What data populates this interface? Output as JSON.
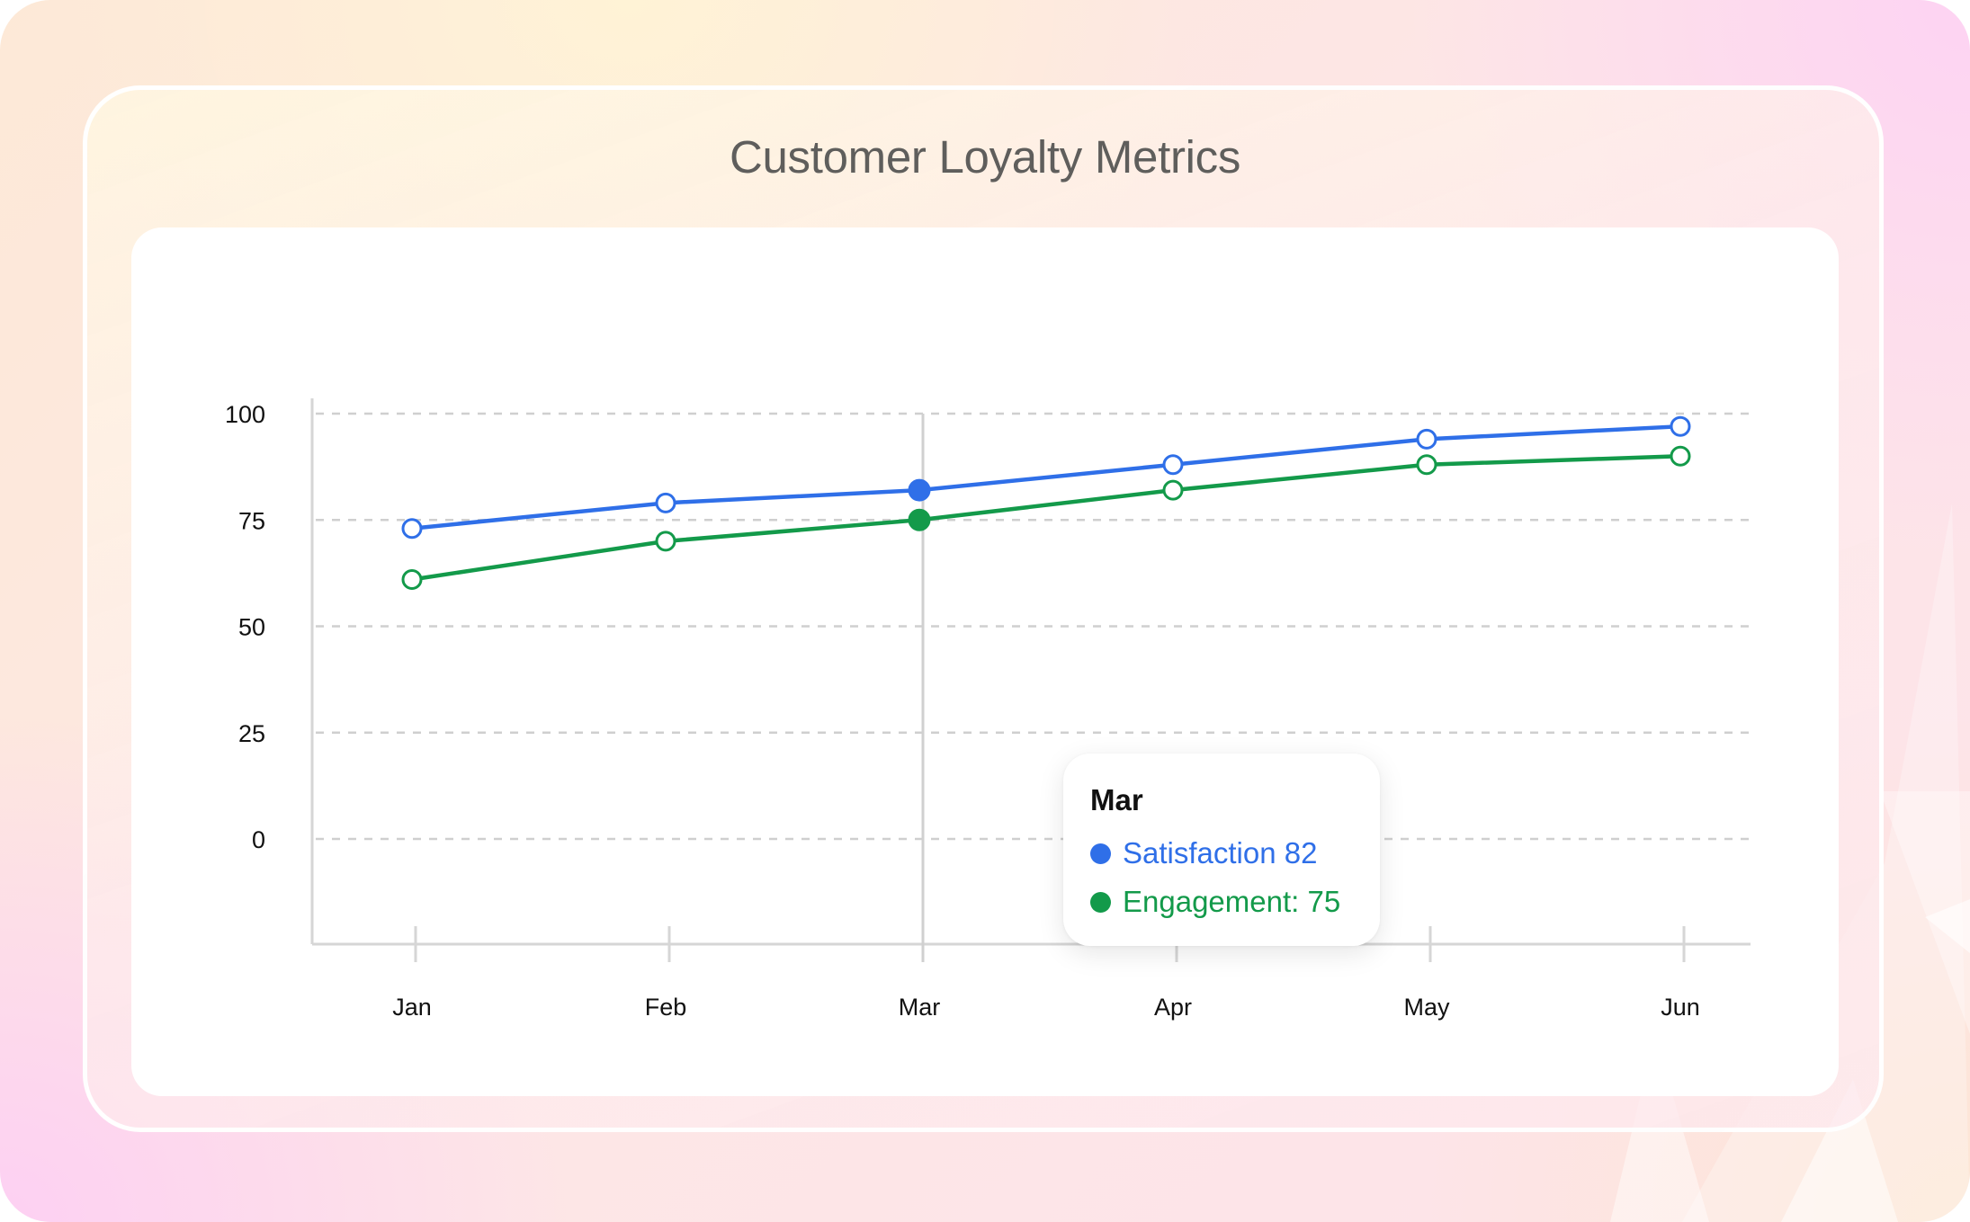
{
  "title": "Customer Loyalty Metrics",
  "colors": {
    "satisfaction": "#2f6fe8",
    "engagement": "#139a4a",
    "grid": "#cfcfcf",
    "axis": "#d6d6d6"
  },
  "tooltip": {
    "month": "Mar",
    "satisfaction_text": "Satisfaction 82",
    "engagement_text": "Engagement: 75"
  },
  "chart_data": {
    "type": "line",
    "title": "Customer Loyalty Metrics",
    "xlabel": "",
    "ylabel": "",
    "categories": [
      "Jan",
      "Feb",
      "Mar",
      "Apr",
      "May",
      "Jun"
    ],
    "y_ticks": [
      0,
      25,
      50,
      75,
      100
    ],
    "ylim": [
      -24,
      103
    ],
    "grid": "horizontal dashed",
    "legend": "none",
    "active_category": "Mar",
    "series": [
      {
        "name": "Satisfaction",
        "color": "#2f6fe8",
        "values": [
          73,
          79,
          82,
          88,
          94,
          97
        ]
      },
      {
        "name": "Engagement",
        "color": "#139a4a",
        "values": [
          61,
          70,
          75,
          82,
          88,
          90
        ]
      }
    ]
  }
}
